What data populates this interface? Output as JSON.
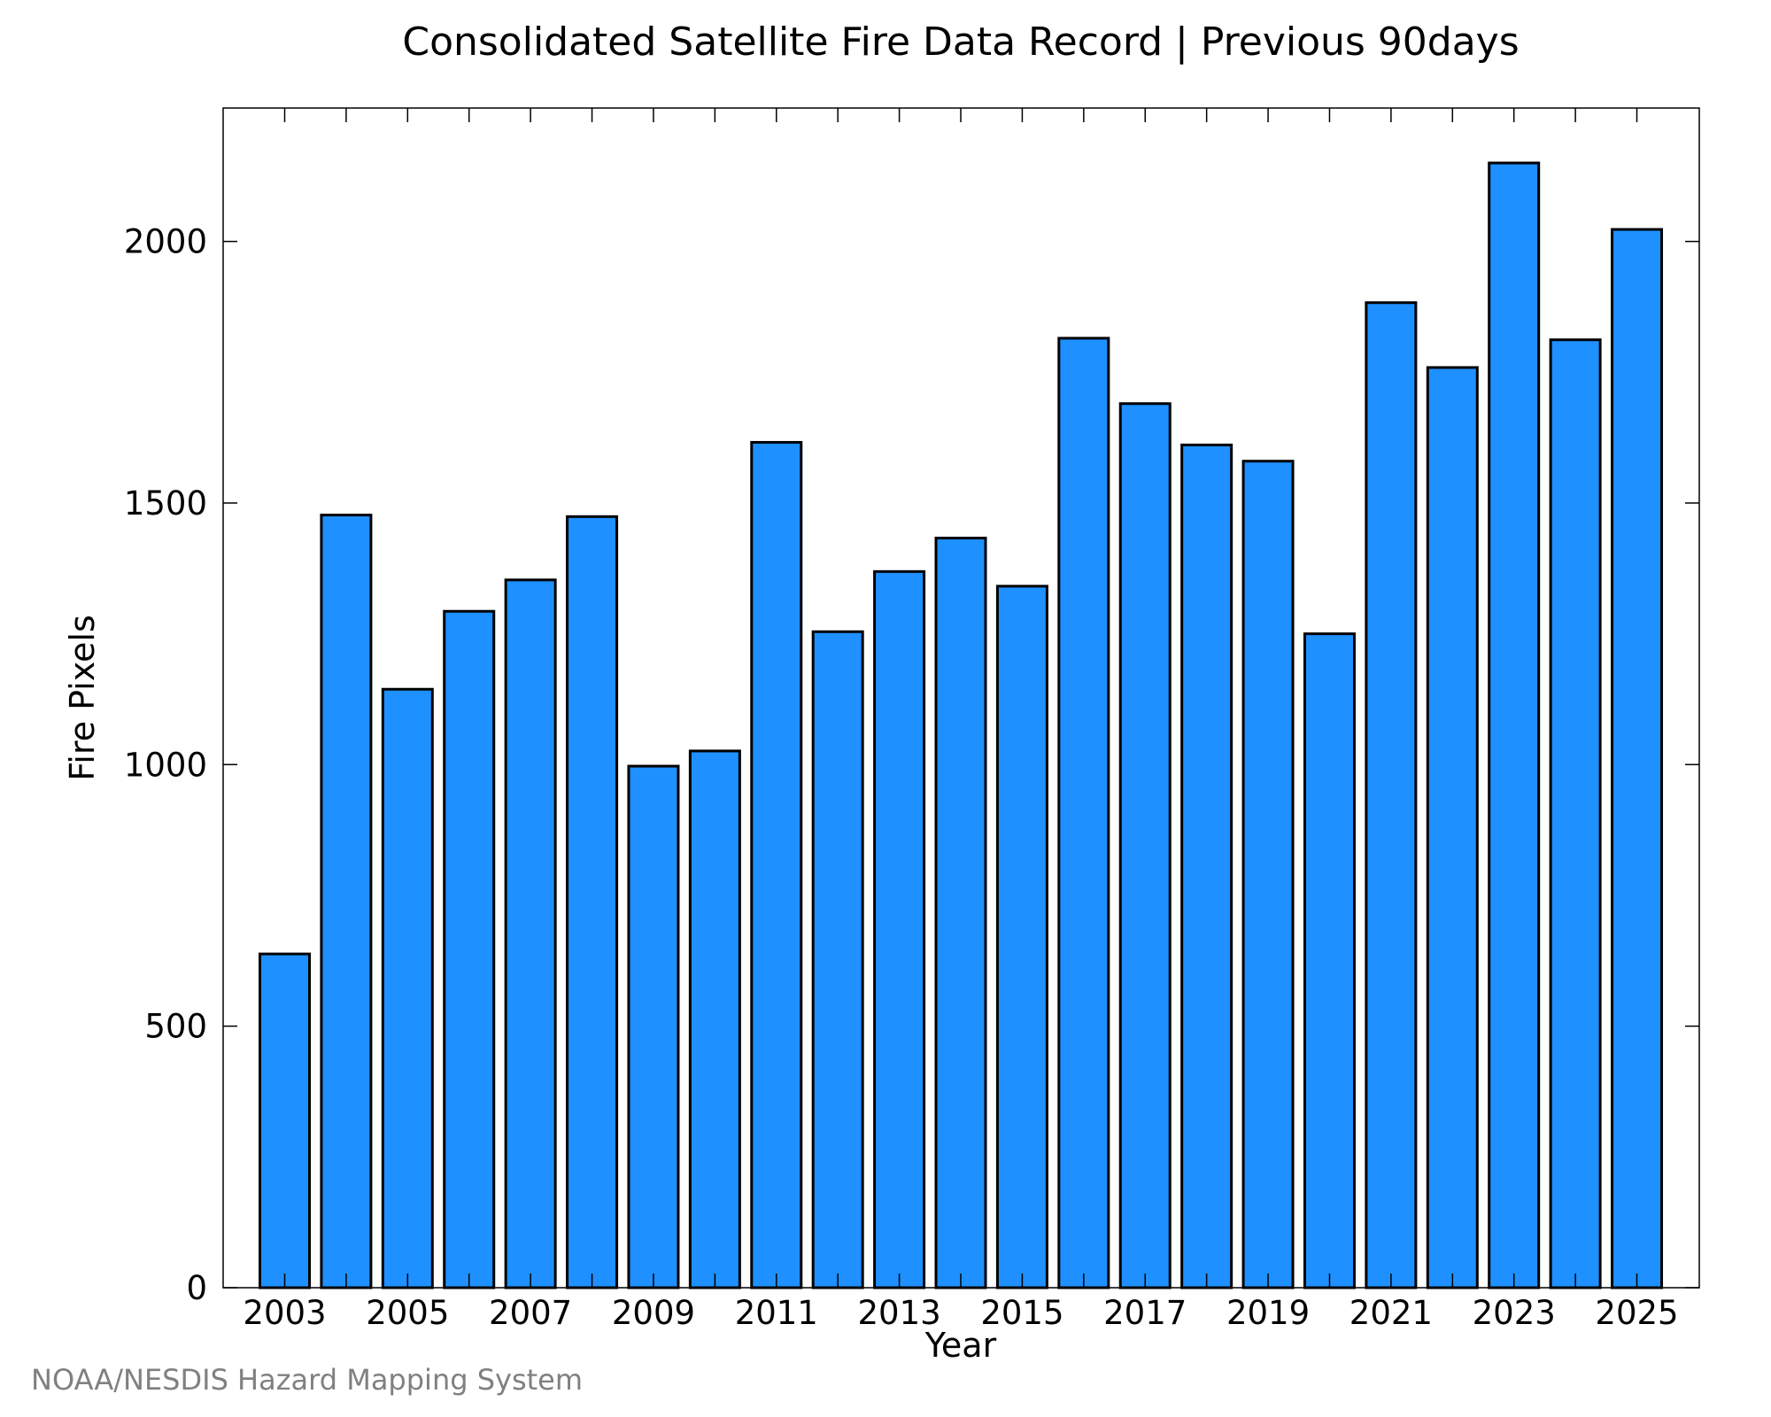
{
  "chart_data": {
    "type": "bar",
    "title": "Consolidated Satellite Fire Data Record | Previous 90days",
    "xlabel": "Year",
    "ylabel": "Fire Pixels",
    "source": "NOAA/NESDIS Hazard Mapping System",
    "categories": [
      "2003",
      "2004",
      "2005",
      "2006",
      "2007",
      "2008",
      "2009",
      "2010",
      "2011",
      "2012",
      "2013",
      "2014",
      "2015",
      "2016",
      "2017",
      "2018",
      "2019",
      "2020",
      "2021",
      "2022",
      "2023",
      "2024",
      "2025"
    ],
    "values": [
      638,
      1477,
      1144,
      1293,
      1353,
      1474,
      997,
      1026,
      1616,
      1254,
      1369,
      1433,
      1341,
      1815,
      1690,
      1611,
      1580,
      1250,
      1883,
      1759,
      2150,
      1812,
      2023
    ],
    "x_tick_labels": [
      "2003",
      "2005",
      "2007",
      "2009",
      "2011",
      "2013",
      "2015",
      "2017",
      "2019",
      "2021",
      "2023",
      "2025"
    ],
    "y_ticks": [
      0,
      500,
      1000,
      1500,
      2000
    ],
    "ylim": [
      0,
      2255
    ],
    "grid": false,
    "legend": "none",
    "bar_color": "#1e90ff",
    "bar_edge_color": "#000000"
  }
}
